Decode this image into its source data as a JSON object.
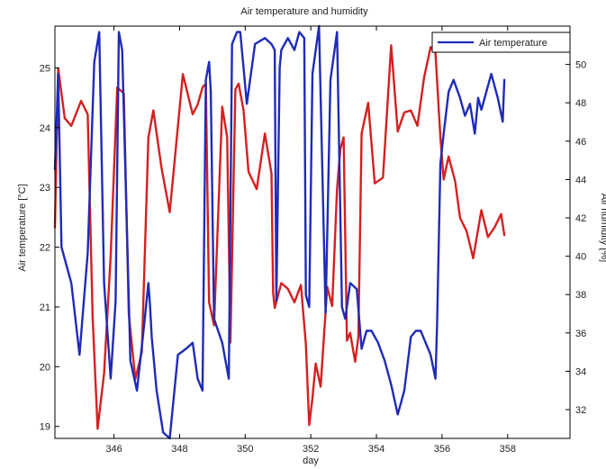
{
  "chart_data": {
    "type": "line",
    "title": "Air temperature and humidity",
    "xlabel": "day",
    "ylabel_left": "Air temperature [°C]",
    "ylabel_right": "Air humidity [%]",
    "xlim": [
      344.2,
      359.9
    ],
    "ylim_left": [
      18.8,
      25.7
    ],
    "ylim_right": [
      30.5,
      52.0
    ],
    "x_ticks": [
      346,
      348,
      350,
      352,
      354,
      356,
      358
    ],
    "x_tick_labels": [
      "346",
      "348",
      "350",
      "352",
      "354",
      "356",
      "358"
    ],
    "y_left_ticks": [
      19,
      20,
      21,
      22,
      23,
      24,
      25
    ],
    "y_left_tick_labels": [
      "19",
      "20",
      "21",
      "22",
      "23",
      "24",
      "25"
    ],
    "y_right_ticks": [
      32,
      34,
      36,
      38,
      40,
      42,
      44,
      46,
      48,
      50
    ],
    "y_right_tick_labels": [
      "32",
      "34",
      "36",
      "38",
      "40",
      "42",
      "44",
      "46",
      "48",
      "50"
    ],
    "grid": false,
    "legend": {
      "position": "top-right",
      "entries": [
        "Air temperature"
      ]
    },
    "series": [
      {
        "name": "Air temperature",
        "axis": "left",
        "color": "#1f2bb8",
        "x": [
          344.2,
          344.3,
          344.4,
          344.7,
          344.95,
          345.2,
          345.4,
          345.55,
          345.7,
          345.9,
          346.05,
          346.15,
          346.25,
          346.5,
          346.7,
          346.9,
          347.05,
          347.1,
          347.15,
          347.3,
          347.5,
          347.7,
          347.95,
          348.2,
          348.4,
          348.55,
          348.7,
          348.8,
          348.9,
          348.95,
          349.05,
          349.3,
          349.5,
          349.6,
          349.75,
          349.85,
          349.95,
          350.05,
          350.3,
          350.6,
          350.8,
          350.9,
          350.95,
          351.05,
          351.1,
          351.3,
          351.5,
          351.65,
          351.8,
          351.85,
          351.95,
          352.05,
          352.25,
          352.45,
          352.6,
          352.8,
          352.95,
          353.05,
          353.2,
          353.4,
          353.55,
          353.7,
          353.85,
          354.05,
          354.25,
          354.45,
          354.65,
          354.85,
          355.05,
          355.2,
          355.35,
          355.5,
          355.65,
          355.8,
          355.85,
          355.95,
          356.05,
          356.2,
          356.35,
          356.55,
          356.7,
          356.85,
          357.0,
          357.1,
          357.2,
          357.35,
          357.5,
          357.7,
          357.85,
          357.9
        ],
        "values": [
          23.3,
          24.9,
          22.0,
          21.4,
          20.2,
          21.9,
          25.1,
          25.6,
          21.4,
          19.8,
          21.1,
          25.6,
          25.3,
          20.1,
          19.6,
          20.6,
          21.4,
          21.0,
          20.5,
          19.6,
          18.9,
          18.8,
          20.2,
          20.3,
          20.4,
          19.8,
          19.6,
          24.8,
          25.1,
          24.6,
          20.8,
          20.4,
          19.8,
          25.4,
          25.6,
          25.6,
          25.0,
          24.4,
          25.4,
          25.5,
          25.4,
          25.3,
          21.1,
          25.0,
          25.3,
          25.5,
          25.3,
          25.6,
          25.5,
          21.2,
          21.0,
          24.9,
          25.7,
          20.9,
          24.8,
          25.6,
          21.0,
          20.8,
          21.4,
          21.3,
          20.3,
          20.6,
          20.6,
          20.4,
          20.1,
          19.7,
          19.2,
          19.6,
          20.5,
          20.6,
          20.6,
          20.4,
          20.2,
          19.8,
          20.7,
          23.4,
          23.9,
          24.6,
          24.8,
          24.5,
          24.2,
          24.4,
          23.9,
          24.5,
          24.3,
          24.6,
          24.9,
          24.5,
          24.1,
          24.8
        ]
      },
      {
        "name": "",
        "axis": "right",
        "color": "#d42020",
        "x": [
          344.2,
          344.3,
          344.5,
          344.7,
          345.0,
          345.2,
          345.35,
          345.5,
          345.7,
          345.9,
          346.1,
          346.3,
          346.45,
          346.65,
          346.85,
          347.05,
          347.2,
          347.45,
          347.7,
          348.1,
          348.4,
          348.55,
          348.7,
          348.8,
          348.9,
          349.05,
          349.3,
          349.45,
          349.55,
          349.7,
          349.8,
          349.95,
          350.1,
          350.35,
          350.6,
          350.8,
          350.85,
          350.9,
          351.1,
          351.3,
          351.5,
          351.7,
          351.85,
          351.95,
          352.05,
          352.15,
          352.3,
          352.5,
          352.65,
          352.8,
          352.9,
          353.0,
          353.1,
          353.2,
          353.35,
          353.45,
          353.55,
          353.75,
          353.95,
          354.2,
          354.45,
          354.65,
          354.85,
          355.05,
          355.25,
          355.45,
          355.65,
          355.8,
          355.95,
          356.05,
          356.2,
          356.4,
          356.55,
          356.75,
          356.95,
          357.2,
          357.4,
          357.6,
          357.8,
          357.9
        ],
        "values": [
          41.5,
          49.8,
          47.2,
          46.8,
          48.1,
          47.4,
          36.8,
          31.0,
          33.9,
          40.0,
          48.8,
          48.5,
          37.0,
          33.6,
          35.0,
          46.2,
          47.6,
          44.6,
          42.3,
          49.5,
          47.4,
          47.9,
          48.8,
          49.0,
          37.6,
          36.4,
          47.8,
          46.2,
          35.5,
          48.7,
          49.0,
          47.6,
          44.4,
          43.5,
          46.4,
          44.3,
          38.1,
          37.3,
          38.6,
          38.3,
          37.6,
          38.5,
          35.4,
          31.2,
          32.6,
          34.4,
          33.2,
          38.4,
          37.4,
          43.5,
          45.6,
          46.2,
          35.6,
          36.0,
          34.5,
          35.8,
          46.4,
          48.0,
          43.8,
          44.1,
          51.0,
          46.5,
          47.5,
          47.6,
          46.8,
          49.3,
          50.9,
          50.6,
          46.2,
          44.0,
          45.2,
          43.9,
          42.0,
          41.3,
          39.9,
          42.4,
          41.0,
          41.5,
          42.2,
          41.1
        ]
      }
    ]
  }
}
